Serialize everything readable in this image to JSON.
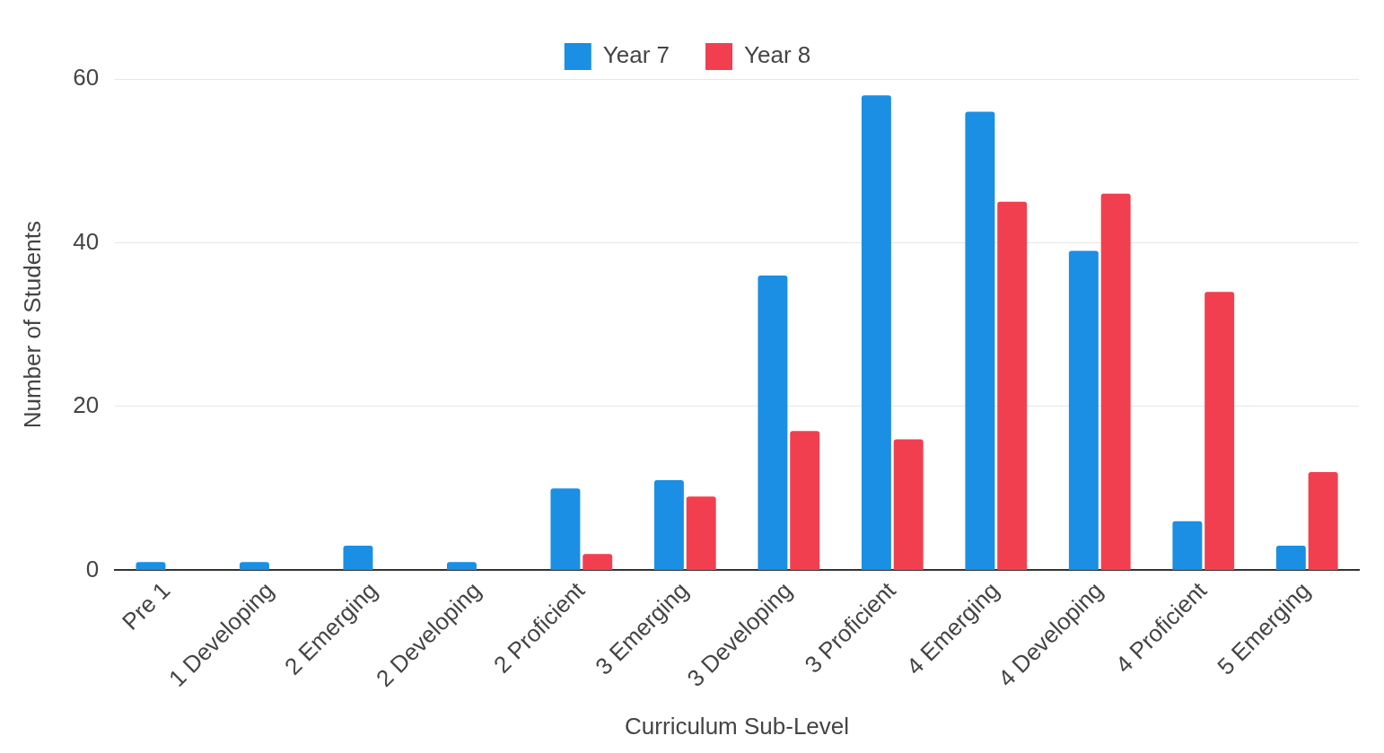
{
  "chart_data": {
    "type": "bar",
    "xlabel": "Curriculum Sub-Level",
    "ylabel": "Number of Students",
    "categories": [
      "Pre 1",
      "1 Developing",
      "2 Emerging",
      "2 Developing",
      "2 Proficient",
      "3 Emerging",
      "3 Developing",
      "3 Proficient",
      "4 Emerging",
      "4 Developing",
      "4 Proficient",
      "5 Emerging"
    ],
    "series": [
      {
        "name": "Year 7",
        "color": "#1a8fe3",
        "values": [
          1,
          1,
          3,
          1,
          10,
          11,
          36,
          58,
          56,
          39,
          6,
          3
        ]
      },
      {
        "name": "Year 8",
        "color": "#f23f4f",
        "values": [
          0,
          0,
          0,
          0,
          2,
          9,
          17,
          16,
          45,
          46,
          34,
          12
        ]
      }
    ],
    "ylim": [
      0,
      60
    ],
    "yticks": [
      0,
      20,
      40,
      60
    ],
    "grid": "y",
    "legend": "top"
  }
}
